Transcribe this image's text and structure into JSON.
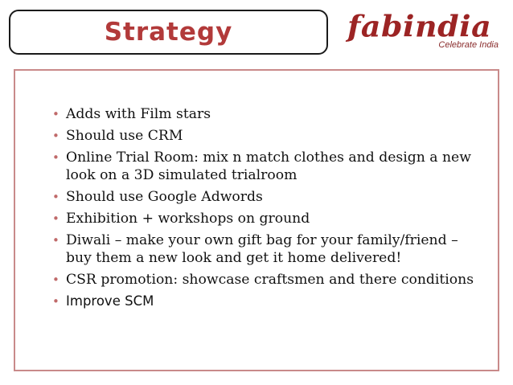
{
  "title": "Strategy",
  "logo": {
    "brand": "fabindia",
    "tagline": "Celebrate India"
  },
  "bullets": [
    "Adds with Film stars",
    "Should use CRM",
    "Online Trial Room: mix n match clothes and design a new look on a 3D simulated trialroom",
    "Should use Google Adwords",
    "Exhibition + workshops on ground",
    "Diwali – make your own gift bag for your family/friend – buy them a new look and  get it home delivered!",
    "CSR promotion: showcase craftsmen and there conditions",
    "Improve SCM"
  ],
  "bullet_symbol": "•",
  "colors": {
    "title": "#b23a3a",
    "brand": "#9c2424",
    "bullet": "#c06a6a",
    "content_border": "#c98a8a"
  }
}
